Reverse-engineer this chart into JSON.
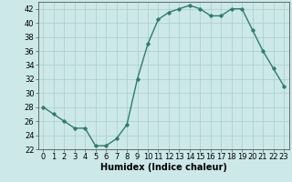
{
  "x": [
    0,
    1,
    2,
    3,
    4,
    5,
    6,
    7,
    8,
    9,
    10,
    11,
    12,
    13,
    14,
    15,
    16,
    17,
    18,
    19,
    20,
    21,
    22,
    23
  ],
  "y": [
    28,
    27,
    26,
    25,
    25,
    22.5,
    22.5,
    23.5,
    25.5,
    32,
    37,
    40.5,
    41.5,
    42,
    42.5,
    42,
    41,
    41,
    42,
    42,
    39,
    36,
    33.5,
    31
  ],
  "line_color": "#2e7d6e",
  "marker": "D",
  "marker_size": 1.8,
  "bg_color": "#cce8e8",
  "grid_color": "#aacccc",
  "xlabel": "Humidex (Indice chaleur)",
  "xlabel_fontsize": 7,
  "tick_fontsize": 6,
  "ylim": [
    22,
    43
  ],
  "yticks": [
    22,
    24,
    26,
    28,
    30,
    32,
    34,
    36,
    38,
    40,
    42
  ],
  "xlim": [
    -0.5,
    23.5
  ],
  "xticks": [
    0,
    1,
    2,
    3,
    4,
    5,
    6,
    7,
    8,
    9,
    10,
    11,
    12,
    13,
    14,
    15,
    16,
    17,
    18,
    19,
    20,
    21,
    22,
    23
  ],
  "line_width": 1.0
}
